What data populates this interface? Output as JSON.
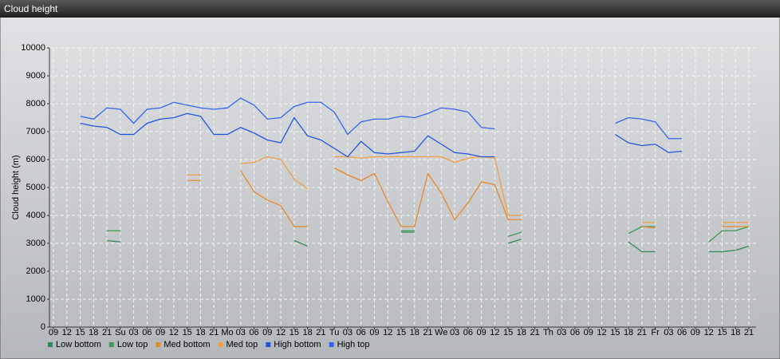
{
  "chart_data": {
    "type": "line",
    "title": "Cloud height",
    "y_label": "Cloud height (m)",
    "categories": [
      "09",
      "12",
      "15",
      "18",
      "21",
      "Su",
      "03",
      "06",
      "09",
      "12",
      "15",
      "18",
      "21",
      "Mo",
      "03",
      "06",
      "09",
      "12",
      "15",
      "18",
      "21",
      "Tu",
      "03",
      "06",
      "09",
      "12",
      "15",
      "18",
      "21",
      "We",
      "03",
      "06",
      "09",
      "12",
      "15",
      "18",
      "21",
      "Th",
      "03",
      "06",
      "09",
      "12",
      "15",
      "18",
      "21",
      "Fr",
      "03",
      "06",
      "09",
      "12",
      "15",
      "18",
      "21"
    ],
    "ylim": [
      0,
      10000
    ],
    "yticks": [
      0,
      1000,
      2000,
      3000,
      4000,
      5000,
      6000,
      7000,
      8000,
      9000,
      10000
    ],
    "grid": true,
    "legend": "bottom",
    "series": [
      {
        "name": "Low bottom",
        "color": "#2e8b57",
        "values": [
          null,
          null,
          null,
          null,
          3100,
          3050,
          null,
          null,
          null,
          null,
          null,
          null,
          null,
          null,
          null,
          null,
          null,
          null,
          3100,
          2900,
          null,
          null,
          null,
          null,
          null,
          null,
          3400,
          3400,
          null,
          null,
          null,
          null,
          null,
          null,
          3000,
          3150,
          null,
          null,
          null,
          null,
          null,
          null,
          null,
          3050,
          2700,
          2700,
          null,
          null,
          null,
          2700,
          2700,
          2750,
          2900
        ]
      },
      {
        "name": "Low top",
        "color": "#3a9a5a",
        "values": [
          null,
          null,
          null,
          null,
          3450,
          3450,
          null,
          null,
          null,
          null,
          null,
          null,
          null,
          null,
          null,
          null,
          null,
          null,
          null,
          null,
          null,
          null,
          null,
          null,
          null,
          null,
          3450,
          3450,
          null,
          null,
          null,
          null,
          null,
          null,
          3250,
          3400,
          null,
          null,
          null,
          null,
          null,
          null,
          null,
          3350,
          3600,
          3600,
          null,
          null,
          null,
          3050,
          3450,
          3450,
          3600
        ]
      },
      {
        "name": "Med bottom",
        "color": "#e8892b",
        "values": [
          null,
          null,
          null,
          null,
          null,
          null,
          null,
          null,
          null,
          null,
          5250,
          5250,
          null,
          null,
          5600,
          4850,
          4550,
          4350,
          3600,
          3600,
          null,
          5700,
          5450,
          5250,
          5500,
          4500,
          3600,
          3600,
          5500,
          4800,
          3850,
          4450,
          5200,
          5100,
          3850,
          3850,
          null,
          null,
          null,
          null,
          null,
          null,
          null,
          null,
          3600,
          3550,
          null,
          null,
          null,
          null,
          3600,
          3600,
          3600
        ]
      },
      {
        "name": "Med top",
        "color": "#f0a040",
        "values": [
          null,
          null,
          null,
          null,
          null,
          null,
          null,
          null,
          null,
          null,
          5450,
          5450,
          null,
          null,
          5850,
          5900,
          6100,
          6000,
          5300,
          4950,
          null,
          6100,
          6100,
          6050,
          6100,
          6100,
          6100,
          6100,
          6100,
          6100,
          5900,
          6050,
          6100,
          6050,
          4000,
          4000,
          null,
          null,
          null,
          null,
          null,
          null,
          null,
          null,
          3750,
          3750,
          null,
          null,
          null,
          null,
          3750,
          3750,
          3750
        ]
      },
      {
        "name": "High bottom",
        "color": "#2255dd",
        "values": [
          null,
          null,
          7300,
          7200,
          7150,
          6900,
          6900,
          7300,
          7450,
          7500,
          7650,
          7550,
          6900,
          6900,
          7150,
          6950,
          6700,
          6600,
          7500,
          6850,
          6700,
          6400,
          6100,
          6650,
          6250,
          6200,
          6250,
          6300,
          6850,
          6550,
          6250,
          6200,
          6100,
          6100,
          null,
          null,
          null,
          null,
          null,
          null,
          null,
          null,
          6900,
          6600,
          6500,
          6550,
          6250,
          6300,
          null,
          null,
          null,
          null,
          null
        ]
      },
      {
        "name": "High top",
        "color": "#3366ee",
        "values": [
          null,
          null,
          7550,
          7450,
          7850,
          7800,
          7300,
          7800,
          7850,
          8050,
          7950,
          7850,
          7800,
          7850,
          8200,
          7950,
          7450,
          7500,
          7900,
          8050,
          8050,
          7700,
          6900,
          7350,
          7450,
          7450,
          7550,
          7500,
          7650,
          7850,
          7800,
          7700,
          7150,
          7100,
          null,
          null,
          null,
          null,
          null,
          null,
          null,
          null,
          7300,
          7500,
          7450,
          7350,
          6750,
          6750,
          null,
          null,
          null,
          null,
          null
        ]
      }
    ]
  }
}
